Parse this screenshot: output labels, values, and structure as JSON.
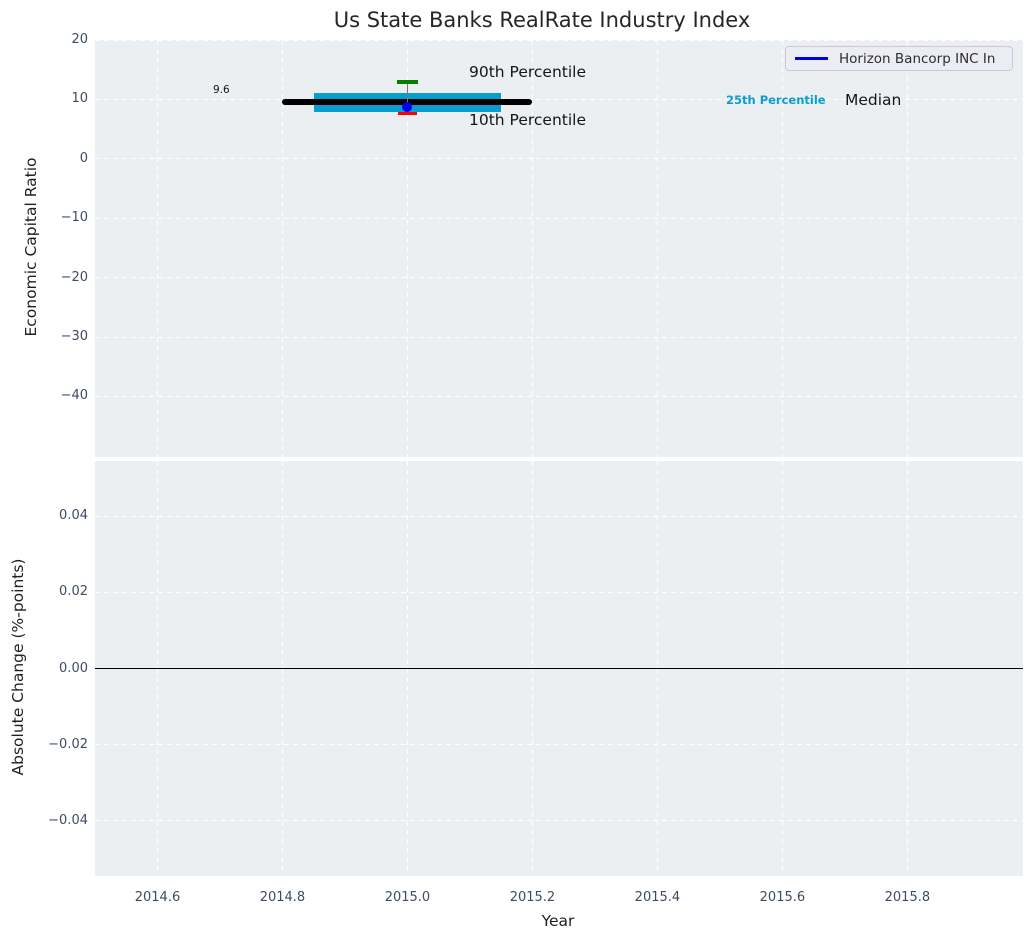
{
  "figure": {
    "title": "Us State Banks RealRate Industry Index"
  },
  "colors": {
    "axes_bg": "#eceff1",
    "grid": "#ffffff",
    "tick_label": "#3d4c63",
    "band": "#089ece",
    "median": "#000000",
    "p90": "#008000",
    "p10": "#ff0000",
    "whisker": "#777777",
    "company_point": "#0000ee",
    "legend_line": "#0000dd",
    "zero_line": "#000000"
  },
  "legend": {
    "label": "Horizon Bancorp INC In",
    "position": "upper right"
  },
  "annotations": {
    "median_value": "9.6",
    "p90": "90th Percentile",
    "p10": "10th Percentile",
    "p25": "25th Percentile",
    "median": "Median"
  },
  "chart_data": [
    {
      "type": "line",
      "title": "Us State Banks RealRate Industry Index",
      "ylabel": "Economic Capital Ratio",
      "xlim": [
        2014.5,
        2015.985
      ],
      "ylim": [
        -50.2,
        20
      ],
      "grid": true,
      "xticks": {
        "values": [
          2014.6,
          2014.8,
          2015.0,
          2015.2,
          2015.4,
          2015.6,
          2015.8
        ],
        "labels": []
      },
      "yticks": {
        "values": [
          20,
          10,
          0,
          -10,
          -20,
          -30,
          -40
        ],
        "labels": [
          "20",
          "10",
          "0",
          "−10",
          "−20",
          "−30",
          "−40"
        ]
      },
      "series": [
        {
          "kind": "band",
          "name": "iqr-band",
          "label": "25th-75th Percentile",
          "colorkey": "band",
          "x0": 2014.85,
          "x1": 2015.15,
          "y0": 7.9,
          "y1": 11.0
        },
        {
          "kind": "hline",
          "name": "median-line",
          "label": "Median",
          "colorkey": "median",
          "x0": 2014.8,
          "x1": 2015.2,
          "y": 9.6,
          "thickness": 6,
          "rounded": true
        },
        {
          "kind": "vline",
          "name": "percentile-whisker",
          "colorkey": "whisker",
          "x": 2015.0,
          "y0": 7.6,
          "y1": 12.9,
          "thickness": 1
        },
        {
          "kind": "cap",
          "name": "p90-cap",
          "label": "90th Percentile",
          "colorkey": "p90",
          "x": 2015.0,
          "y": 12.9,
          "halfwidth": 0.017,
          "thickness": 3.5
        },
        {
          "kind": "cap",
          "name": "p10-cap",
          "label": "10th Percentile",
          "colorkey": "p10",
          "x": 2015.0,
          "y": 7.6,
          "halfwidth": 0.015,
          "thickness": 3.5
        },
        {
          "kind": "point",
          "name": "company-point",
          "label": "Horizon Bancorp INC In",
          "colorkey": "company_point",
          "x": 2015.0,
          "y": 8.8,
          "size": 10
        }
      ]
    },
    {
      "type": "line",
      "ylabel": "Absolute Change (%-points)",
      "xlabel": "Year",
      "xlim": [
        2014.5,
        2015.985
      ],
      "ylim": [
        -0.0545,
        0.0545
      ],
      "grid": true,
      "xticks": {
        "values": [
          2014.6,
          2014.8,
          2015.0,
          2015.2,
          2015.4,
          2015.6,
          2015.8
        ],
        "labels": [
          "2014.6",
          "2014.8",
          "2015.0",
          "2015.2",
          "2015.4",
          "2015.6",
          "2015.8"
        ]
      },
      "yticks": {
        "values": [
          0.04,
          0.02,
          0.0,
          -0.02,
          -0.04
        ],
        "labels": [
          "0.04",
          "0.02",
          "0.00",
          "−0.02",
          "−0.04"
        ]
      },
      "series": [
        {
          "kind": "hline",
          "name": "zero-line",
          "colorkey": "zero_line",
          "x0": 2014.5,
          "x1": 2015.985,
          "y": 0.0,
          "thickness": 1.8
        }
      ]
    }
  ]
}
